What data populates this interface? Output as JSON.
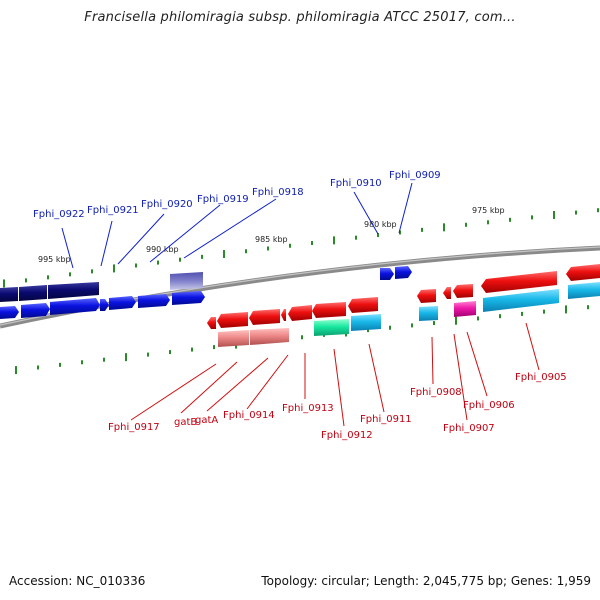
{
  "title": "Francisella philomiragia subsp. philomiragia ATCC 25017, com...",
  "footer": {
    "accession": "Accession: NC_010336",
    "topology": "Topology: circular; Length: 2,045,775 bp; Genes: 1,959"
  },
  "scale_labels": [
    "995 kbp",
    "990 kbp",
    "985 kbp",
    "980 kbp",
    "975 kbp"
  ],
  "gene_labels_top": [
    "Fphi_0922",
    "Fphi_0921",
    "Fphi_0920",
    "Fphi_0919",
    "Fphi_0918",
    "Fphi_0910",
    "Fphi_0909"
  ],
  "gene_labels_bottom": [
    "Fphi_0917",
    "gatB",
    "gatA",
    "Fphi_0914",
    "Fphi_0913",
    "Fphi_0912",
    "Fphi_0911",
    "Fphi_0908",
    "Fphi_0907",
    "Fphi_0906",
    "Fphi_0905"
  ],
  "colors": {
    "top_strand": "#0a12e0",
    "top_strand_dark": "#0a0a70",
    "bottom_strand": "#ee1010",
    "rna_cyan": "#18b8e8",
    "rna_green": "#18e8a0",
    "rna_magenta": "#ee18a8",
    "pink": "#ee8888",
    "violet": "#8080cc",
    "backbone": "#888888",
    "tick": "#2a8a2a"
  }
}
